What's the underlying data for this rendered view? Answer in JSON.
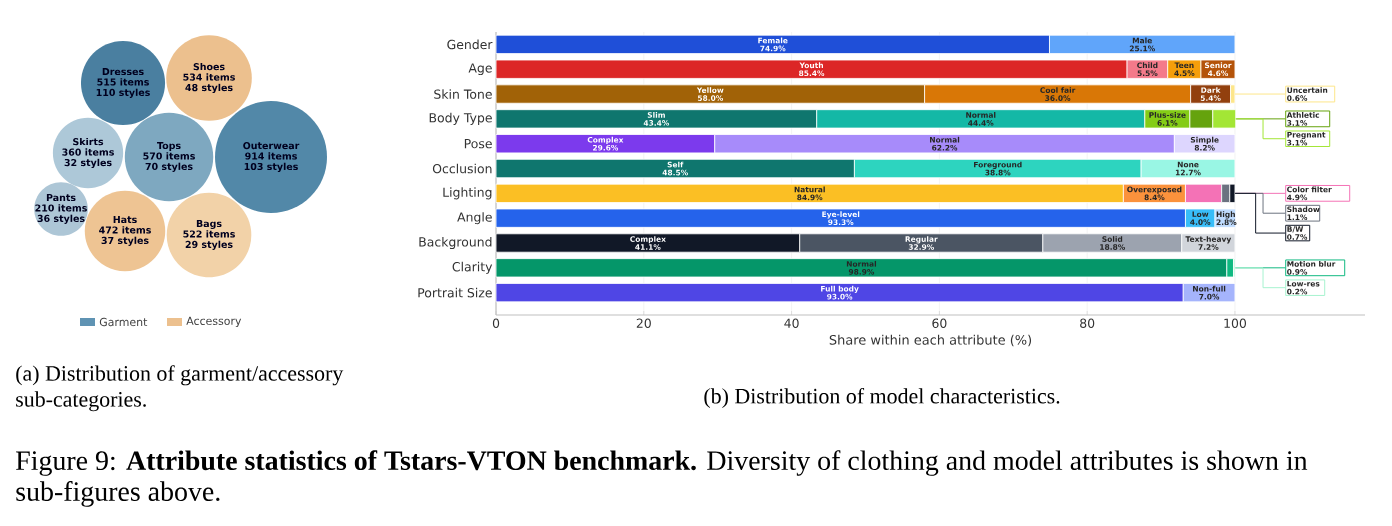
{
  "chart_data": [
    {
      "type": "other",
      "title": "(a) Distribution of garment/accessory sub-categories.",
      "legend": "bottom",
      "categories": [
        "Dresses",
        "Shoes",
        "Skirts",
        "Tops",
        "Outerwear",
        "Pants",
        "Hats",
        "Bags"
      ],
      "annotations": [
        "110 styles",
        "48 styles",
        "32 styles",
        "70 styles",
        "103 styles",
        "36 styles",
        "37 styles",
        "29 styles"
      ],
      "series": [
        {
          "name": "Garment",
          "color": "#5f93b3",
          "colors": [
            "#4a7fa0",
            null,
            "#adc8d8",
            "#7ea8c0",
            "#5288a8",
            "#adc6d6",
            null,
            null
          ],
          "values": [
            515,
            null,
            360,
            570,
            914,
            210,
            null,
            null
          ],
          "value_labels": [
            "515 items",
            null,
            "360 items",
            "570 items",
            "914 items",
            "210 items",
            null,
            null
          ]
        },
        {
          "name": "Accessory",
          "color": "#ecc08e",
          "colors": [
            null,
            "#ecc08e",
            null,
            null,
            null,
            null,
            "#eec493",
            "#f2d2a8"
          ],
          "values": [
            null,
            534,
            null,
            null,
            null,
            null,
            472,
            522
          ],
          "value_labels": [
            null,
            "534 items",
            null,
            null,
            null,
            null,
            "472 items",
            "522 items"
          ]
        }
      ]
    },
    {
      "type": "bar",
      "title": "(b) Distribution of model characteristics.",
      "stacked": true,
      "orientation": "horizontal",
      "grid": "x",
      "annotations": [
        "Figure 9: **Attribute statistics of Tstars-VTON benchmark.** Diversity of clothing and model attributes is shown in sub-figures above."
      ],
      "xlabel": "Share within each attribute (%)",
      "xlim": [
        0,
        117.6
      ],
      "xticks": [
        0,
        20,
        40,
        60,
        80,
        100
      ],
      "categories": [
        "Gender",
        "Age",
        "Skin Tone",
        "Body Type",
        "Pose",
        "Occlusion",
        "Lighting",
        "Angle",
        "Background",
        "Clarity",
        "Portrait Size"
      ],
      "series": [
        {
          "values": [
            74.9,
            85.4,
            58.0,
            43.4,
            29.6,
            48.5,
            84.9,
            93.3,
            41.1,
            98.9,
            93.0
          ],
          "colors": [
            "#1f4fd8",
            "#dc2626",
            "#a16207",
            "#0f766e",
            "#7c3aed",
            "#0f766e",
            "#fbbf24",
            "#2563eb",
            "#111827",
            "#059669",
            "#4f46e5"
          ],
          "value_labels": [
            "Female 74.9%",
            "Youth 85.4%",
            "Yellow 58.0%",
            "Slim 43.4%",
            "Complex 29.6%",
            "Self 48.5%",
            "Natural 84.9%",
            "Eye-level 93.3%",
            "Complex 41.1%",
            "Normal 98.9%",
            "Full body 93.0%"
          ]
        },
        {
          "values": [
            25.1,
            5.5,
            36.0,
            44.4,
            62.2,
            38.8,
            8.4,
            4.0,
            32.9,
            0.9,
            7.0
          ],
          "colors": [
            "#60a5fa",
            "#f47a8a",
            "#d97706",
            "#14b8a6",
            "#a78bfa",
            "#2dd4bf",
            "#fb923c",
            "#38bdf8",
            "#4b5563",
            "#10b981",
            "#a5b4fc"
          ],
          "value_labels": [
            "Male 25.1%",
            "Child 5.5%",
            "Cool fair 36.0%",
            "Normal 44.4%",
            "Normal 62.2%",
            "Foreground 38.8%",
            "Overexposed 8.4%",
            "Low 4.0%",
            "Regular 32.9%",
            "Motion blur 0.9%",
            "Non-full 7.0%"
          ]
        },
        {
          "values": [
            null,
            4.5,
            5.4,
            6.1,
            8.2,
            12.7,
            4.9,
            2.8,
            18.8,
            0.2,
            null
          ],
          "colors": [
            null,
            "#f59e0b",
            "#92400e",
            "#84cc16",
            "#ddd6fe",
            "#99f6e4",
            "#f472b6",
            "#bfdbfe",
            "#9ca3af",
            "#a7f3d0",
            null
          ],
          "value_labels": [
            null,
            "Teen 4.5%",
            "Dark 5.4%",
            "Plus-size 6.1%",
            "Simple 8.2%",
            "None 12.7%",
            "Color filter 4.9%",
            "High 2.8%",
            "Solid 18.8%",
            "Low-res 0.2%",
            null
          ]
        },
        {
          "values": [
            null,
            4.6,
            0.6,
            3.1,
            null,
            null,
            1.1,
            null,
            7.2,
            null,
            null
          ],
          "colors": [
            null,
            "#b45309",
            "#fde68a",
            "#65a30d",
            null,
            null,
            "#6b7280",
            null,
            "#d1d5db",
            null,
            null
          ],
          "value_labels": [
            null,
            "Senior 4.6%",
            "Uncertain 0.6%",
            "Athletic 3.1%",
            null,
            null,
            "Shadow 1.1%",
            null,
            "Text-heavy 7.2%",
            null,
            null
          ]
        },
        {
          "values": [
            null,
            null,
            null,
            3.1,
            null,
            null,
            0.7,
            null,
            null,
            null,
            null
          ],
          "colors": [
            null,
            null,
            null,
            "#a3e635",
            null,
            null,
            "#111827",
            null,
            null,
            null,
            null
          ],
          "value_labels": [
            null,
            null,
            null,
            "Pregnant 3.1%",
            null,
            null,
            "B/W 0.7%",
            null,
            null,
            null,
            null
          ]
        }
      ]
    }
  ]
}
